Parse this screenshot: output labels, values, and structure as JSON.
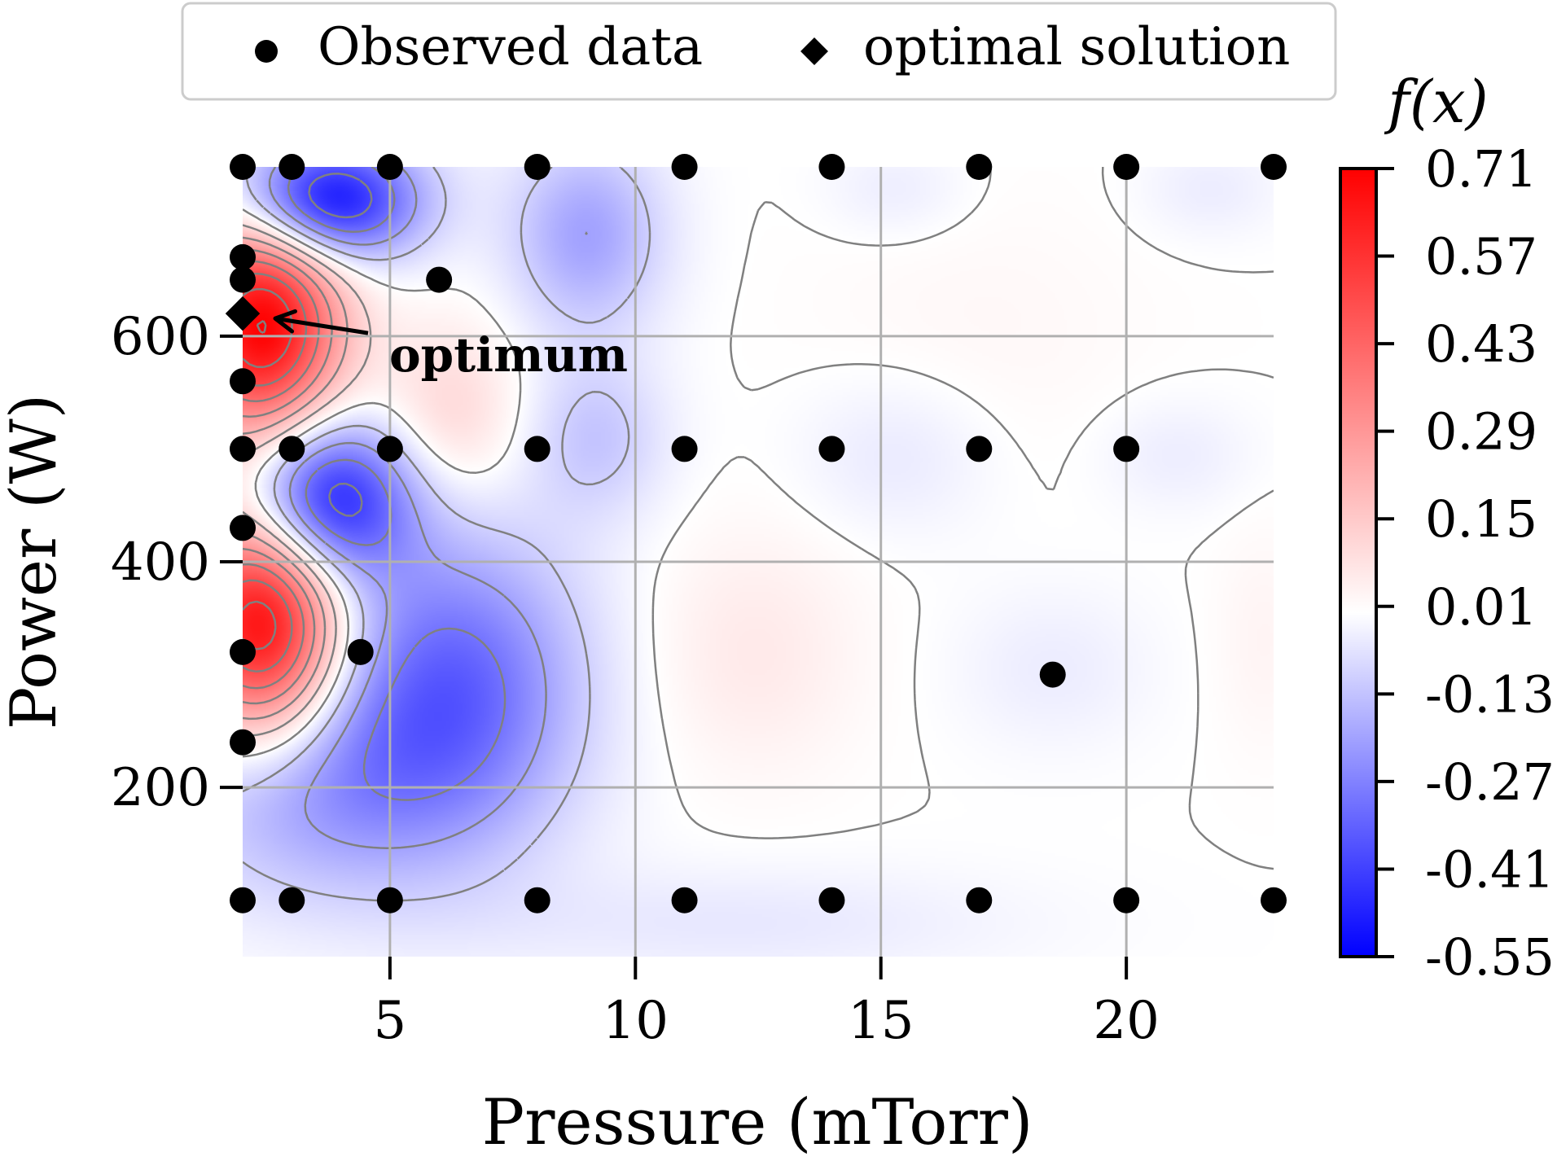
{
  "chart_data": {
    "type": "heatmap",
    "subtype": "contour",
    "xlabel": "Pressure (mTorr)",
    "ylabel": "Power (W)",
    "colorbar_label": "f(x)",
    "xlim": [
      2,
      23
    ],
    "ylim": [
      50,
      750
    ],
    "xticks": [
      5,
      10,
      15,
      20
    ],
    "yticks": [
      200,
      400,
      600
    ],
    "colorbar_ticks": [
      0.71,
      0.57,
      0.43,
      0.29,
      0.15,
      0.01,
      -0.13,
      -0.27,
      -0.41,
      -0.55
    ],
    "colorbar_tick_labels": [
      "0.71",
      "0.57",
      "0.43",
      "0.29",
      "0.15",
      "0.01",
      "-0.13",
      "-0.27",
      "-0.41",
      "-0.55"
    ],
    "colorbar_range": [
      -0.55,
      0.71
    ],
    "colormap": {
      "low": "#0000ff",
      "mid": "#ffffff",
      "high": "#ff0000"
    },
    "grid": true,
    "legend": {
      "placement": "top",
      "entries": [
        {
          "label": "Observed data",
          "marker": "circle"
        },
        {
          "label": "optimal solution",
          "marker": "diamond"
        }
      ]
    },
    "observed_data": [
      [
        2,
        750
      ],
      [
        3,
        750
      ],
      [
        5,
        750
      ],
      [
        8,
        750
      ],
      [
        11,
        750
      ],
      [
        14,
        750
      ],
      [
        17,
        750
      ],
      [
        20,
        750
      ],
      [
        23,
        750
      ],
      [
        2,
        670
      ],
      [
        2,
        650
      ],
      [
        6,
        650
      ],
      [
        2,
        560
      ],
      [
        2,
        500
      ],
      [
        3,
        500
      ],
      [
        5,
        500
      ],
      [
        8,
        500
      ],
      [
        11,
        500
      ],
      [
        14,
        500
      ],
      [
        17,
        500
      ],
      [
        20,
        500
      ],
      [
        2,
        430
      ],
      [
        2,
        320
      ],
      [
        4.4,
        320
      ],
      [
        2,
        240
      ],
      [
        18.5,
        300
      ],
      [
        2,
        100
      ],
      [
        3,
        100
      ],
      [
        5,
        100
      ],
      [
        8,
        100
      ],
      [
        11,
        100
      ],
      [
        14,
        100
      ],
      [
        17,
        100
      ],
      [
        20,
        100
      ],
      [
        23,
        100
      ]
    ],
    "optimal_solution": [
      2,
      620
    ],
    "annotation": {
      "text": "optimum",
      "points_to": [
        2,
        620
      ]
    },
    "field_features": [
      {
        "x": 2.4,
        "y": 345,
        "value": 0.71,
        "sx": 1.1,
        "sy": 70
      },
      {
        "x": 2.4,
        "y": 610,
        "value": 0.71,
        "sx": 1.1,
        "sy": 70
      },
      {
        "x": 3.7,
        "y": 720,
        "value": -0.55,
        "sx": 1.3,
        "sy": 38
      },
      {
        "x": 3.7,
        "y": 455,
        "value": -0.5,
        "sx": 1.2,
        "sy": 50
      },
      {
        "x": 6.3,
        "y": 290,
        "value": -0.33,
        "sx": 1.8,
        "sy": 95
      },
      {
        "x": 3.5,
        "y": 200,
        "value": -0.2,
        "sx": 2.2,
        "sy": 70
      },
      {
        "x": 9.0,
        "y": 690,
        "value": -0.2,
        "sx": 1.1,
        "sy": 60
      },
      {
        "x": 9.2,
        "y": 510,
        "value": -0.12,
        "sx": 1.0,
        "sy": 50
      },
      {
        "x": 6.2,
        "y": 530,
        "value": 0.12,
        "sx": 1.0,
        "sy": 55
      },
      {
        "x": 12.4,
        "y": 320,
        "value": 0.06,
        "sx": 1.5,
        "sy": 75
      },
      {
        "x": 15.3,
        "y": 495,
        "value": -0.05,
        "sx": 1.4,
        "sy": 50
      },
      {
        "x": 18.5,
        "y": 305,
        "value": -0.04,
        "sx": 1.4,
        "sy": 50
      },
      {
        "x": 21.0,
        "y": 495,
        "value": -0.04,
        "sx": 1.1,
        "sy": 35
      },
      {
        "x": 12.0,
        "y": 80,
        "value": -0.05,
        "sx": 4.0,
        "sy": 35
      },
      {
        "x": 17.0,
        "y": 600,
        "value": 0.02,
        "sx": 2.5,
        "sy": 90
      },
      {
        "x": 15.3,
        "y": 730,
        "value": -0.04,
        "sx": 1.0,
        "sy": 30
      },
      {
        "x": 21.7,
        "y": 730,
        "value": -0.04,
        "sx": 1.0,
        "sy": 30
      },
      {
        "x": 22.8,
        "y": 330,
        "value": 0.03,
        "sx": 0.7,
        "sy": 70
      }
    ]
  }
}
